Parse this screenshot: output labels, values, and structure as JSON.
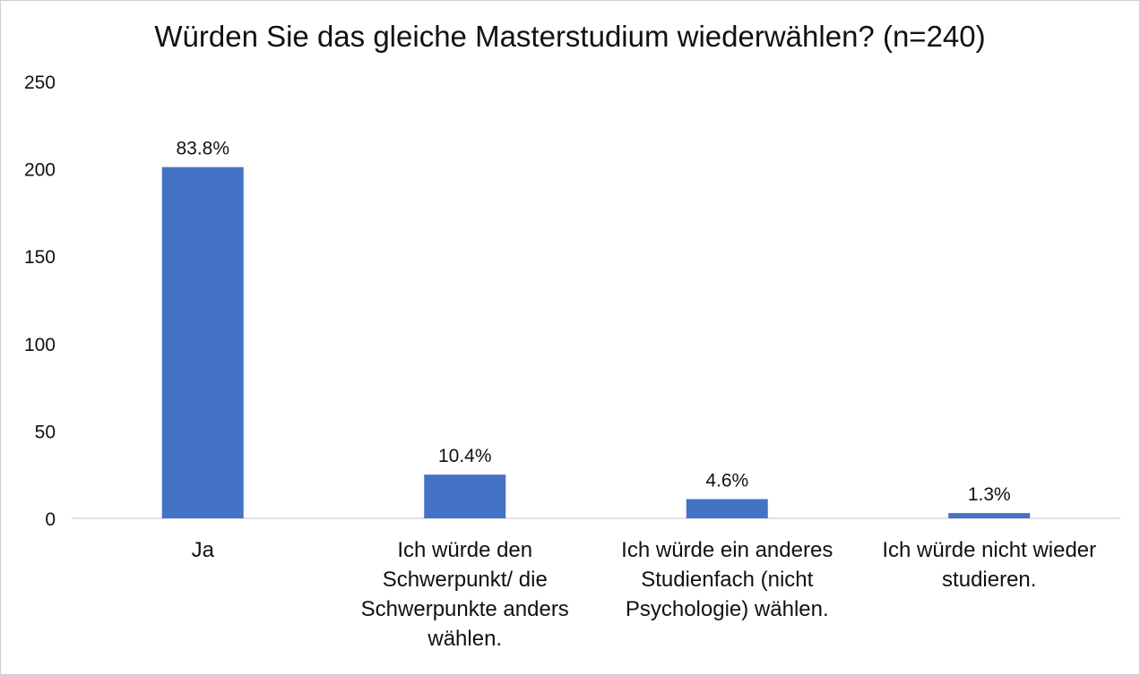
{
  "chart_data": {
    "type": "bar",
    "title": "Würden Sie das gleiche Masterstudium wiederwählen? (n=240)",
    "xlabel": "",
    "ylabel": "",
    "ylim": [
      0,
      250
    ],
    "yticks": [
      0,
      50,
      100,
      150,
      200,
      250
    ],
    "grid": false,
    "legend": "none",
    "bar_color": "#4472c4",
    "categories": [
      "Ja",
      "Ich würde den Schwerpunkt/ die Schwerpunkte anders wählen.",
      "Ich würde ein anderes Studienfach (nicht Psychologie) wählen.",
      "Ich würde nicht wieder studieren."
    ],
    "category_lines": [
      [
        "Ja"
      ],
      [
        "Ich würde den",
        "Schwerpunkt/ die",
        "Schwerpunkte anders",
        "wählen."
      ],
      [
        "Ich würde ein anderes",
        "Studienfach (nicht",
        "Psychologie) wählen."
      ],
      [
        "Ich würde nicht wieder",
        "studieren."
      ]
    ],
    "values": [
      201,
      25,
      11,
      3
    ],
    "data_labels": [
      "83.8%",
      "10.4%",
      "4.6%",
      "1.3%"
    ]
  }
}
